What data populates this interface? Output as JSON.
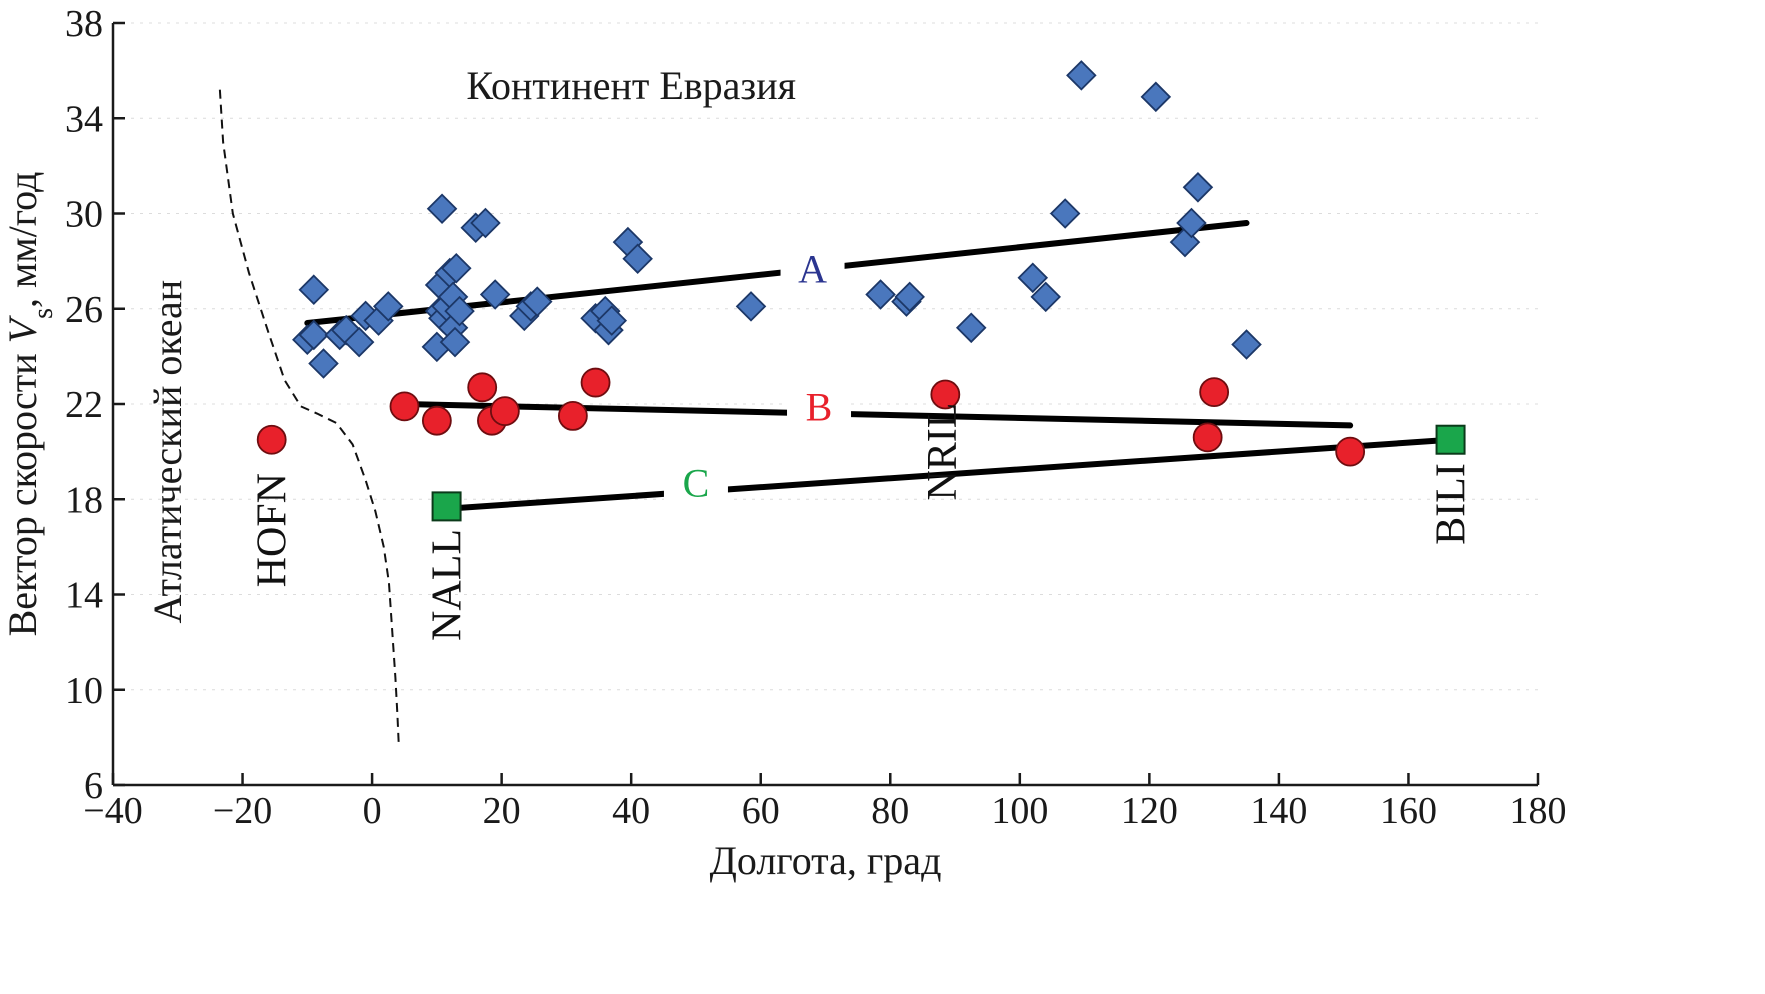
{
  "chart_data": {
    "type": "scatter",
    "xlabel": "Долгота, град",
    "ylabel": "Вектор скорости Vs, мм/год",
    "ylabel_parts": {
      "pre": "Вектор скорости ",
      "var": "V",
      "sub": "s",
      "post": ", мм/год"
    },
    "xlim": [
      -40,
      180
    ],
    "ylim": [
      6,
      38
    ],
    "x_ticks": [
      -40,
      -20,
      0,
      20,
      40,
      60,
      80,
      100,
      120,
      140,
      160,
      180
    ],
    "x_tick_labels": [
      "−40",
      "−20",
      "0",
      "20",
      "40",
      "60",
      "80",
      "100",
      "120",
      "140",
      "160",
      "180"
    ],
    "y_ticks": [
      6,
      10,
      14,
      18,
      22,
      26,
      30,
      34,
      38
    ],
    "y_tick_labels": [
      "6",
      "10",
      "14",
      "18",
      "22",
      "26",
      "30",
      "34",
      "38"
    ],
    "annotations": {
      "continent": "Континент Евразия",
      "ocean": "Атлатический океан"
    },
    "boundary_line": [
      [
        -23.5,
        35.2
      ],
      [
        -23,
        33
      ],
      [
        -21.5,
        30
      ],
      [
        -19,
        27.5
      ],
      [
        -16,
        25
      ],
      [
        -13.5,
        23
      ],
      [
        -11,
        21.9
      ],
      [
        -8.5,
        21.6
      ],
      [
        -5.5,
        21.2
      ],
      [
        -3,
        20.3
      ],
      [
        -1,
        18.8
      ],
      [
        0.5,
        17.5
      ],
      [
        1.8,
        16
      ],
      [
        2.6,
        14.5
      ],
      [
        3.1,
        12.5
      ],
      [
        3.6,
        10.5
      ],
      [
        3.9,
        9
      ],
      [
        4.1,
        7.8
      ]
    ],
    "colors": {
      "series_A": "#4a77bd",
      "series_A_edge": "#1c3767",
      "series_B": "#e8212b",
      "series_B_edge": "#6e0d10",
      "series_C": "#1aa64b",
      "series_C_edge": "#0b3a1a",
      "label_A": "#2b3590",
      "label_B": "#e8212b",
      "label_C": "#1aa64b",
      "trend": "#000000"
    },
    "series": [
      {
        "id": "A",
        "label": "A",
        "marker": "diamond",
        "points": [
          [
            -10,
            24.7
          ],
          [
            -9,
            24.9
          ],
          [
            -9,
            26.8
          ],
          [
            -7.5,
            23.7
          ],
          [
            -5,
            24.9
          ],
          [
            -4,
            25.1
          ],
          [
            -2,
            24.6
          ],
          [
            -1,
            25.7
          ],
          [
            1,
            25.5
          ],
          [
            2.5,
            26.1
          ],
          [
            10,
            24.4
          ],
          [
            10.5,
            25.9
          ],
          [
            10.5,
            27.0
          ],
          [
            10.8,
            30.2
          ],
          [
            11,
            25.6
          ],
          [
            11.5,
            26.1
          ],
          [
            12,
            27.5
          ],
          [
            12.5,
            26.5
          ],
          [
            12.5,
            25.2
          ],
          [
            12.8,
            24.6
          ],
          [
            13,
            27.7
          ],
          [
            13.5,
            25.9
          ],
          [
            16,
            29.4
          ],
          [
            17.5,
            29.6
          ],
          [
            19,
            26.6
          ],
          [
            23.5,
            25.7
          ],
          [
            24.5,
            26.1
          ],
          [
            25.5,
            26.3
          ],
          [
            34.5,
            25.6
          ],
          [
            36,
            25.9
          ],
          [
            36.5,
            25.1
          ],
          [
            37,
            25.5
          ],
          [
            39.5,
            28.8
          ],
          [
            41,
            28.1
          ],
          [
            58.5,
            26.1
          ],
          [
            78.5,
            26.6
          ],
          [
            82.5,
            26.3
          ],
          [
            83,
            26.5
          ],
          [
            92.5,
            25.2
          ],
          [
            102,
            27.3
          ],
          [
            104,
            26.5
          ],
          [
            107,
            30.0
          ],
          [
            109.5,
            35.8
          ],
          [
            121,
            34.9
          ],
          [
            125.5,
            28.8
          ],
          [
            126.5,
            29.6
          ],
          [
            127.5,
            31.1
          ],
          [
            135,
            24.5
          ]
        ],
        "trend": [
          [
            -10,
            25.4
          ],
          [
            135,
            29.6
          ]
        ]
      },
      {
        "id": "B",
        "label": "B",
        "marker": "circle",
        "points": [
          [
            -15.5,
            20.5
          ],
          [
            5,
            21.9
          ],
          [
            10,
            21.3
          ],
          [
            17,
            22.7
          ],
          [
            18.5,
            21.3
          ],
          [
            20.5,
            21.7
          ],
          [
            31,
            21.5
          ],
          [
            34.5,
            22.9
          ],
          [
            88.5,
            22.4
          ],
          [
            129,
            20.6
          ],
          [
            130,
            22.5
          ],
          [
            151,
            20.0
          ]
        ],
        "trend": [
          [
            5,
            22.0
          ],
          [
            151,
            21.1
          ]
        ]
      },
      {
        "id": "C",
        "label": "C",
        "marker": "square",
        "points": [
          [
            11.5,
            17.7
          ],
          [
            166.5,
            20.5
          ]
        ],
        "trend": [
          [
            11.5,
            17.6
          ],
          [
            166.5,
            20.5
          ]
        ]
      }
    ],
    "trend_label_positions": {
      "A": [
        68,
        27.7
      ],
      "B": [
        69,
        21.9
      ],
      "C": [
        50,
        18.7
      ]
    },
    "stations": [
      {
        "name": "HOFN",
        "x": -15.5,
        "y": 16.7
      },
      {
        "name": "NALL",
        "x": 11.5,
        "y": 14.4
      },
      {
        "name": "NRIL",
        "x": 88,
        "y": 20.0
      },
      {
        "name": "BILI",
        "x": 166.5,
        "y": 17.8
      }
    ]
  }
}
